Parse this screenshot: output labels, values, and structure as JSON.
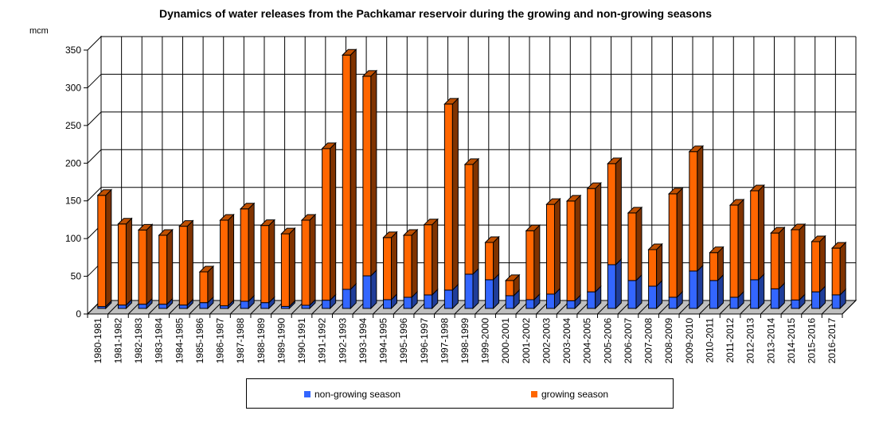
{
  "chart_data": {
    "type": "bar",
    "stacked": true,
    "three_d": true,
    "title": "Dynamics of water releases from the Pachkamar reservoir during the growing and non-growing seasons",
    "ylabel": "mcm",
    "xlabel": "",
    "ylim": [
      0,
      350
    ],
    "yticks": [
      0,
      50,
      100,
      150,
      200,
      250,
      300,
      350
    ],
    "grid": true,
    "legend_position": "bottom",
    "categories": [
      "1980-1981",
      "1981-1982",
      "1982-1983",
      "1983-1984",
      "1984-1985",
      "1985-1986",
      "1986-1987",
      "1987-1988",
      "1988-1989",
      "1989-1990",
      "1990-1991",
      "1991-1992",
      "1992-1993",
      "1993-1994",
      "1994-1995",
      "1995-1996",
      "1996-1997",
      "1997-1998",
      "1998-1999",
      "1999-2000",
      "2000-2001",
      "2001-2002",
      "2002-2003",
      "2003-2004",
      "2004-2005",
      "2005-2006",
      "2006-2007",
      "2007-2008",
      "2008-2009",
      "2009-2010",
      "2010-2011",
      "2011-2012",
      "2012-2013",
      "2013-2014",
      "2014-2015",
      "2015-2016",
      "2016-2017"
    ],
    "series": [
      {
        "name": "non-growing season",
        "color": "#3366FF",
        "values": [
          2.5,
          4.5,
          5.6,
          5.6,
          4.5,
          7.7,
          3.5,
          9.5,
          7.7,
          2.7,
          4.2,
          10.9,
          25.3,
          43.2,
          11.6,
          14.8,
          17.9,
          24.3,
          45.4,
          38,
          16.9,
          11.6,
          19,
          10.2,
          22,
          58,
          37,
          29.5,
          14.8,
          49.6,
          37,
          14.8,
          38,
          26,
          11.2,
          22,
          18
        ]
      },
      {
        "name": "growing season",
        "color": "#FF6600",
        "values": [
          147.5,
          107.5,
          98.4,
          91.4,
          104.5,
          40.8,
          113.5,
          122.5,
          102.3,
          96.3,
          112.8,
          201.1,
          310.7,
          264.8,
          82.4,
          82.2,
          93.1,
          246.7,
          145.6,
          49.5,
          20.1,
          91.4,
          119,
          132.2,
          137,
          134,
          89.6,
          48.5,
          137.2,
          158.4,
          37,
          122.2,
          118,
          74,
          93.2,
          66.6,
          62
        ]
      }
    ]
  }
}
